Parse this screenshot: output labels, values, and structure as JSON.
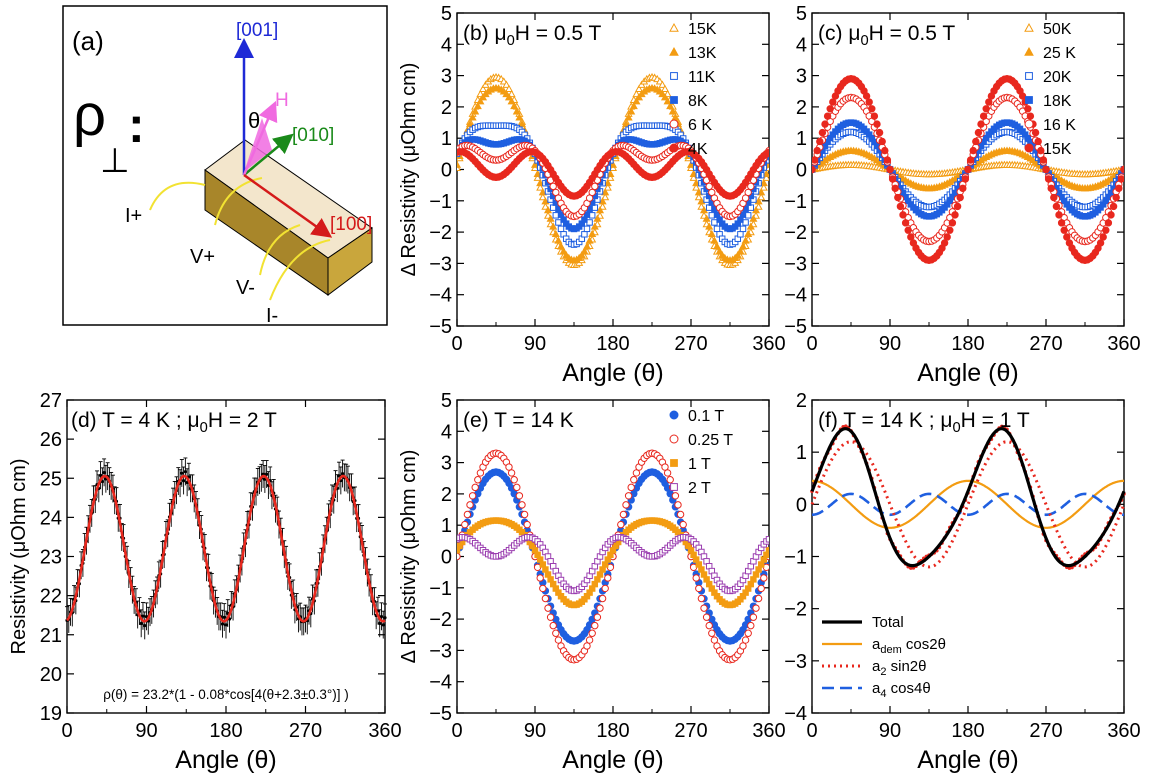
{
  "figure": {
    "panel_a": {
      "label": "(a)",
      "rho_symbol": "ρ",
      "rho_subscript": "⊥",
      "rho_colon": ":",
      "axis_001": "[001]",
      "axis_010": "[010]",
      "axis_100": "[100]",
      "theta": "θ",
      "field": "H",
      "contacts": [
        "I+",
        "V+",
        "V-",
        "I-"
      ],
      "colors": {
        "axis_001": "#1f2ad6",
        "axis_010": "#1a8a1a",
        "axis_100": "#d41a1a",
        "field": "#f06ae0",
        "leads": "#f2e232",
        "sample_top": "#f3e6cc",
        "sample_side": "#b7962e"
      }
    }
  },
  "chart_data": [
    {
      "id": "b",
      "type": "scatter",
      "panel_label": "(b)",
      "annotation": "μ0H = 0.5 T",
      "xlabel": "Angle (θ)",
      "ylabel": "Δ Resistivity (μOhm cm)",
      "xlim": [
        0,
        360
      ],
      "ylim": [
        -5,
        5
      ],
      "xticks": [
        0,
        90,
        180,
        270,
        360
      ],
      "yticks": [
        -5,
        -4,
        -3,
        -2,
        -1,
        0,
        1,
        2,
        3,
        4,
        5
      ],
      "legend_position": "top-right",
      "series": [
        {
          "name": "15K",
          "color": "#f39c12",
          "marker": "open-triangle",
          "A2": 3.0,
          "A4": 0.05,
          "phase": 0
        },
        {
          "name": "13K",
          "color": "#f39c12",
          "marker": "filled-triangle",
          "A2": 2.75,
          "A4": 0.15,
          "phase": 0
        },
        {
          "name": "11K",
          "color": "#1f5fe0",
          "marker": "open-square",
          "A2": 1.9,
          "A4": 0.5,
          "phase": 0
        },
        {
          "name": "8K",
          "color": "#1f5fe0",
          "marker": "filled-square",
          "A2": 1.35,
          "A4": 0.55,
          "phase": 0
        },
        {
          "name": "6 K",
          "color": "#e8281e",
          "marker": "open-circle",
          "A2": 0.9,
          "A4": 0.6,
          "phase": 0
        },
        {
          "name": "4K",
          "color": "#e8281e",
          "marker": "filled-circle",
          "A2": 0.3,
          "A4": 0.55,
          "phase": 0
        }
      ]
    },
    {
      "id": "c",
      "type": "scatter",
      "panel_label": "(c)",
      "annotation": "μ0H = 0.5 T",
      "xlabel": "Angle (θ)",
      "ylabel": "",
      "xlim": [
        0,
        360
      ],
      "ylim": [
        -5,
        5
      ],
      "xticks": [
        0,
        90,
        180,
        270,
        360
      ],
      "yticks": [
        -5,
        -4,
        -3,
        -2,
        -1,
        0,
        1,
        2,
        3,
        4,
        5
      ],
      "legend_position": "top-right",
      "series": [
        {
          "name": "50K",
          "color": "#f39c12",
          "marker": "open-triangle",
          "A2": 0.15,
          "A4": 0,
          "phase": 0
        },
        {
          "name": "25 K",
          "color": "#f39c12",
          "marker": "filled-triangle",
          "A2": 0.6,
          "A4": 0,
          "phase": 0
        },
        {
          "name": "20K",
          "color": "#1f5fe0",
          "marker": "open-square",
          "A2": 1.2,
          "A4": 0,
          "phase": 0
        },
        {
          "name": "18K",
          "color": "#1f5fe0",
          "marker": "filled-square",
          "A2": 1.5,
          "A4": 0,
          "phase": 0
        },
        {
          "name": "16 K",
          "color": "#e8281e",
          "marker": "open-circle",
          "A2": 2.3,
          "A4": 0,
          "phase": 0
        },
        {
          "name": "15K",
          "color": "#e8281e",
          "marker": "filled-circle",
          "A2": 2.9,
          "A4": 0,
          "phase": 0
        }
      ]
    },
    {
      "id": "d",
      "type": "scatter",
      "panel_label": "(d)",
      "annotation": "T = 4 K ; μ0H = 2 T",
      "formula": "ρ(θ) = 23.2*(1 - 0.08*cos[4(θ+2.3±0.3°)] )",
      "xlabel": "Angle (θ)",
      "ylabel": "Resistivity (μOhm cm)",
      "xlim": [
        0,
        360
      ],
      "ylim": [
        19,
        27
      ],
      "xticks": [
        0,
        90,
        180,
        270,
        360
      ],
      "yticks": [
        19,
        20,
        21,
        22,
        23,
        24,
        25,
        26,
        27
      ],
      "fit": {
        "rho0": 23.2,
        "amplitude": 0.08,
        "harmonic": 4,
        "phase_deg": 2.3,
        "color": "#e8281e"
      },
      "data_color": "#000000",
      "error_bar": 0.35
    },
    {
      "id": "e",
      "type": "scatter",
      "panel_label": "(e)",
      "annotation": "T = 14 K",
      "xlabel": "Angle (θ)",
      "ylabel": "Δ Resistivity (μOhm cm)",
      "xlim": [
        0,
        360
      ],
      "ylim": [
        -5,
        5
      ],
      "xticks": [
        0,
        90,
        180,
        270,
        360
      ],
      "yticks": [
        -5,
        -4,
        -3,
        -2,
        -1,
        0,
        1,
        2,
        3,
        4,
        5
      ],
      "legend_position": "top-right",
      "series": [
        {
          "name": "0.1 T",
          "color": "#1f5fe0",
          "marker": "filled-circle",
          "A2": 2.7,
          "A4": 0,
          "phase": 0
        },
        {
          "name": "0.25 T",
          "color": "#e8281e",
          "marker": "open-circle",
          "A2": 3.3,
          "A4": 0,
          "phase": 0
        },
        {
          "name": "1 T",
          "color": "#f39c12",
          "marker": "filled-square",
          "A2": 1.35,
          "A4": 0.2,
          "phase": 0
        },
        {
          "name": "2 T",
          "color": "#9b3fb0",
          "marker": "open-square",
          "A2": 0.55,
          "A4": 0.55,
          "phase": 0
        }
      ]
    },
    {
      "id": "f",
      "type": "line",
      "panel_label": "(f)",
      "annotation": "T = 14 K ; μ0H = 1 T",
      "xlabel": "Angle (θ)",
      "ylabel": "",
      "xlim": [
        0,
        360
      ],
      "ylim": [
        -4,
        2
      ],
      "xticks": [
        0,
        90,
        180,
        270,
        360
      ],
      "yticks": [
        -4,
        -3,
        -2,
        -1,
        0,
        1,
        2
      ],
      "legend_position": "bottom-left",
      "coefficients": {
        "a_dem": 0.45,
        "a2": 1.2,
        "a4": -0.2
      },
      "series": [
        {
          "name": "Total",
          "color": "#000000",
          "dash": "solid",
          "width": 3.2
        },
        {
          "name": "a_dem cos2θ",
          "label_main": "a",
          "label_sub": "dem",
          "label_tail": " cos2θ",
          "color": "#f39c12",
          "dash": "solid",
          "width": 2.2
        },
        {
          "name": "a2 sin2θ",
          "label_main": "a",
          "label_sub": "2",
          "label_tail": " sin2θ",
          "color": "#e8281e",
          "dash": "dotted",
          "width": 3
        },
        {
          "name": "a4 cos4θ",
          "label_main": "a",
          "label_sub": "4",
          "label_tail": " cos4θ",
          "color": "#1f5fe0",
          "dash": "dashed",
          "width": 2.6
        }
      ],
      "data_color": "#e8281e"
    }
  ]
}
